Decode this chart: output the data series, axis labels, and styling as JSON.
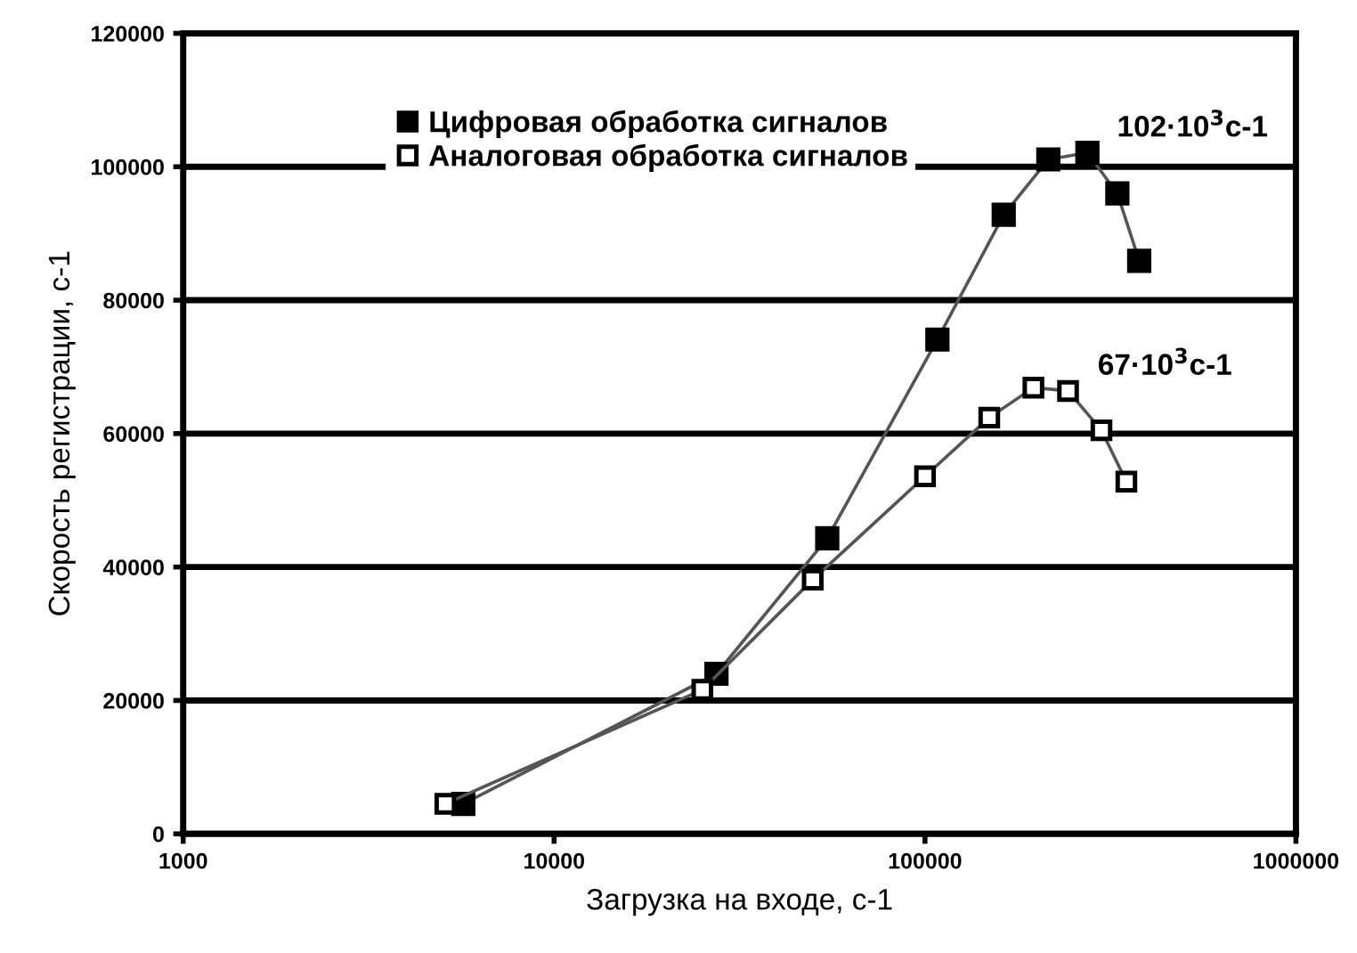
{
  "chart_data": {
    "type": "line",
    "xlabel": "Загрузка на входе, с-1",
    "ylabel": "Скорость регистрации, с-1",
    "log": "x",
    "xlim": [
      1000,
      1000000
    ],
    "xticks": [
      1000,
      10000,
      100000,
      1000000
    ],
    "ylim": [
      0,
      120000
    ],
    "yticks": [
      0,
      20000,
      40000,
      60000,
      80000,
      100000,
      120000
    ],
    "grid": "y",
    "legend": "top",
    "line_style": "solid",
    "series": [
      {
        "name": "Цифровая обработка сигналов",
        "color": "#000000",
        "marker": "square",
        "x": [
          5690,
          27400,
          54500,
          108000,
          163000,
          215000,
          274000,
          330000,
          378000
        ],
        "values": [
          4500,
          24000,
          44300,
          74100,
          92800,
          101100,
          102100,
          96000,
          85900
        ]
      },
      {
        "name": "Аналоговая обработка сигналов",
        "color": "#000000",
        "marker": "square_open",
        "x": [
          5090,
          25100,
          49800,
          100000,
          149000,
          196000,
          243000,
          299000,
          349000
        ],
        "values": [
          4500,
          21600,
          38100,
          53600,
          62400,
          66900,
          66400,
          60500,
          52800
        ]
      }
    ],
    "annotations": [
      {
        "text": "102·10$^{3}$с-1",
        "x": 274000,
        "y": 102100
      },
      {
        "text": "67·10$^{3}$с-1",
        "x": 243000,
        "y": 66400
      }
    ]
  }
}
